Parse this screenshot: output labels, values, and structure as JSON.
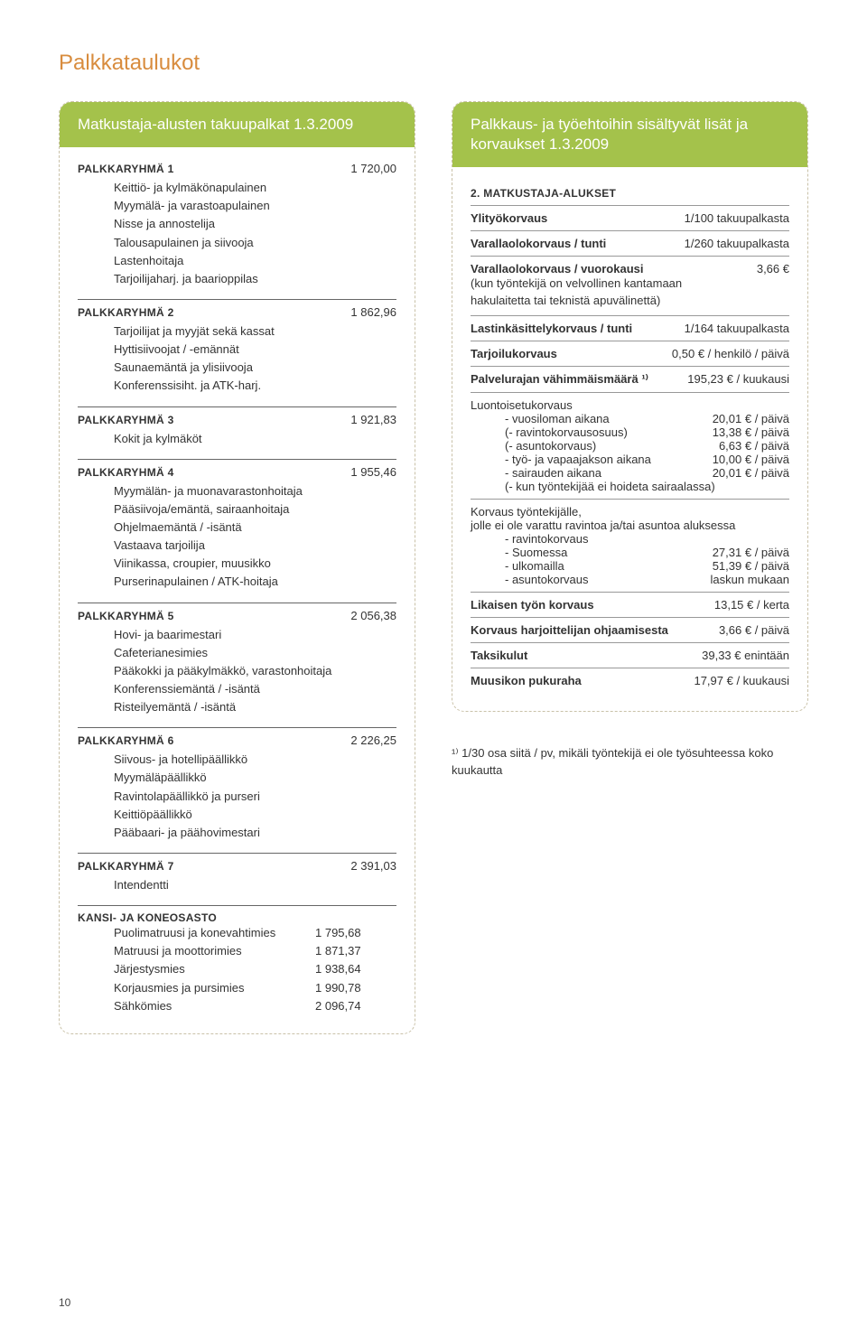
{
  "page_number": "10",
  "title": "Palkkataulukot",
  "left_box_title": "Matkustaja-alusten takuupalkat 1.3.2009",
  "right_box_title": "Palkkaus- ja työehtoihin sisältyvät lisät ja korvaukset 1.3.2009",
  "groups": [
    {
      "name": "PALKKARYHMÄ 1",
      "value": "1 720,00",
      "items": [
        "Keittiö- ja kylmäkönapulainen",
        "Myymälä- ja varastoapulainen",
        "Nisse ja annostelija",
        "Talousapulainen ja siivooja",
        "Lastenhoitaja",
        "Tarjoilijaharj. ja baarioppilas"
      ]
    },
    {
      "name": "PALKKARYHMÄ 2",
      "value": "1 862,96",
      "items": [
        "Tarjoilijat ja myyjät sekä kassat",
        "Hyttisiivoojat / -emännät",
        "Saunaemäntä ja ylisiivooja",
        "Konferenssisiht. ja ATK-harj."
      ]
    },
    {
      "name": "PALKKARYHMÄ 3",
      "value": "1 921,83",
      "items": [
        "Kokit ja kylmäköt"
      ]
    },
    {
      "name": "PALKKARYHMÄ 4",
      "value": "1 955,46",
      "items": [
        "Myymälän- ja muonavarastonhoitaja",
        "Pääsiivoja/emäntä, sairaanhoitaja",
        "Ohjelmaemäntä / -isäntä",
        "Vastaava tarjoilija",
        "Viinikassa, croupier, muusikko",
        "Purserinapulainen / ATK-hoitaja"
      ]
    },
    {
      "name": "PALKKARYHMÄ 5",
      "value": "2 056,38",
      "items": [
        "Hovi- ja baarimestari",
        "Cafeterianesimies",
        "Pääkokki ja pääkylmäkkö, varastonhoitaja",
        "Konferenssiemäntä / -isäntä",
        "Risteilyemäntä / -isäntä"
      ]
    },
    {
      "name": "PALKKARYHMÄ 6",
      "value": "2 226,25",
      "items": [
        "Siivous- ja hotellipäällikkö",
        "Myymäläpäällikkö",
        "Ravintolapäällikkö ja purseri",
        "Keittiöpäällikkö",
        "Pääbaari- ja päähovimestari"
      ]
    },
    {
      "name": "PALKKARYHMÄ 7",
      "value": "2 391,03",
      "items": [
        "Intendentti"
      ]
    }
  ],
  "kansi": {
    "title": "KANSI- JA KONEOSASTO",
    "rows": [
      {
        "label": "Puolimatruusi ja konevahtimies",
        "value": "1 795,68"
      },
      {
        "label": "Matruusi ja moottorimies",
        "value": "1 871,37"
      },
      {
        "label": "Järjestysmies",
        "value": "1 938,64"
      },
      {
        "label": "Korjausmies ja pursimies",
        "value": "1 990,78"
      },
      {
        "label": "Sähkömies",
        "value": "2 096,74"
      }
    ]
  },
  "section2_title": "2. MATKUSTAJA-ALUKSET",
  "simple_rows_top": [
    {
      "label": "Ylityökorvaus",
      "bold": true,
      "value": "1/100 takuupalkasta"
    },
    {
      "label": "Varallaolokorvaus / tunti",
      "bold": true,
      "value": "1/260 takuupalkasta"
    }
  ],
  "varalla": {
    "label": "Varallaolokorvaus / vuorokausi",
    "value": "3,66 €",
    "sub": "(kun työntekijä on velvollinen kantamaan hakulaitetta tai teknistä apuvälinettä)"
  },
  "simple_rows_mid": [
    {
      "label": "Lastinkäsittelykorvaus / tunti",
      "bold": true,
      "value": "1/164 takuupalkasta"
    },
    {
      "label": "Tarjoilukorvaus",
      "bold": true,
      "value": "0,50 € / henkilö / päivä"
    },
    {
      "label": "Palvelurajan vähimmäismäärä ¹⁾",
      "bold": true,
      "value": "195,23 € / kuukausi"
    }
  ],
  "luonto": {
    "label": "Luontoisetukorvaus",
    "rows": [
      {
        "label": "vuosiloman aikana",
        "bold": true,
        "value": "20,01 € / päivä"
      },
      {
        "label": "(- ravintokorvausosuus)",
        "bold": false,
        "value": "13,38 € / päivä"
      },
      {
        "label": "(- asuntokorvaus)",
        "bold": false,
        "value": "6,63 € / päivä"
      },
      {
        "label": "työ- ja vapaajakson aikana",
        "bold": true,
        "value": "10,00 € / päivä"
      },
      {
        "label": "sairauden aikana",
        "bold": true,
        "value": "20,01 € / päivä"
      }
    ],
    "tail": "(- kun työntekijää ei hoideta sairaalassa)"
  },
  "korvaus_tyo": {
    "label": "Korvaus työntekijälle,",
    "sub": "jolle ei ole varattu ravintoa ja/tai asuntoa aluksessa",
    "rows_intro_bold": "ravintokorvaus",
    "rows": [
      {
        "label": "- Suomessa",
        "value": "27,31 € / päivä"
      },
      {
        "label": "- ulkomailla",
        "value": "51,39 € / päivä"
      }
    ],
    "asunto_label": "asuntokorvaus",
    "asunto_value": "laskun mukaan"
  },
  "simple_rows_bottom": [
    {
      "label": "Likaisen työn korvaus",
      "bold": true,
      "value": "13,15 € / kerta"
    },
    {
      "label": "Korvaus harjoittelijan ohjaamisesta",
      "bold": true,
      "value": "3,66 € / päivä"
    },
    {
      "label": "Taksikulut",
      "bold": true,
      "value": "39,33 € enintään"
    },
    {
      "label": "Muusikon pukuraha",
      "bold": true,
      "value": "17,97 € / kuukausi"
    }
  ],
  "footnote": "¹⁾ 1/30 osa siitä / pv, mikäli työntekijä ei ole työsuhteessa koko kuukautta"
}
